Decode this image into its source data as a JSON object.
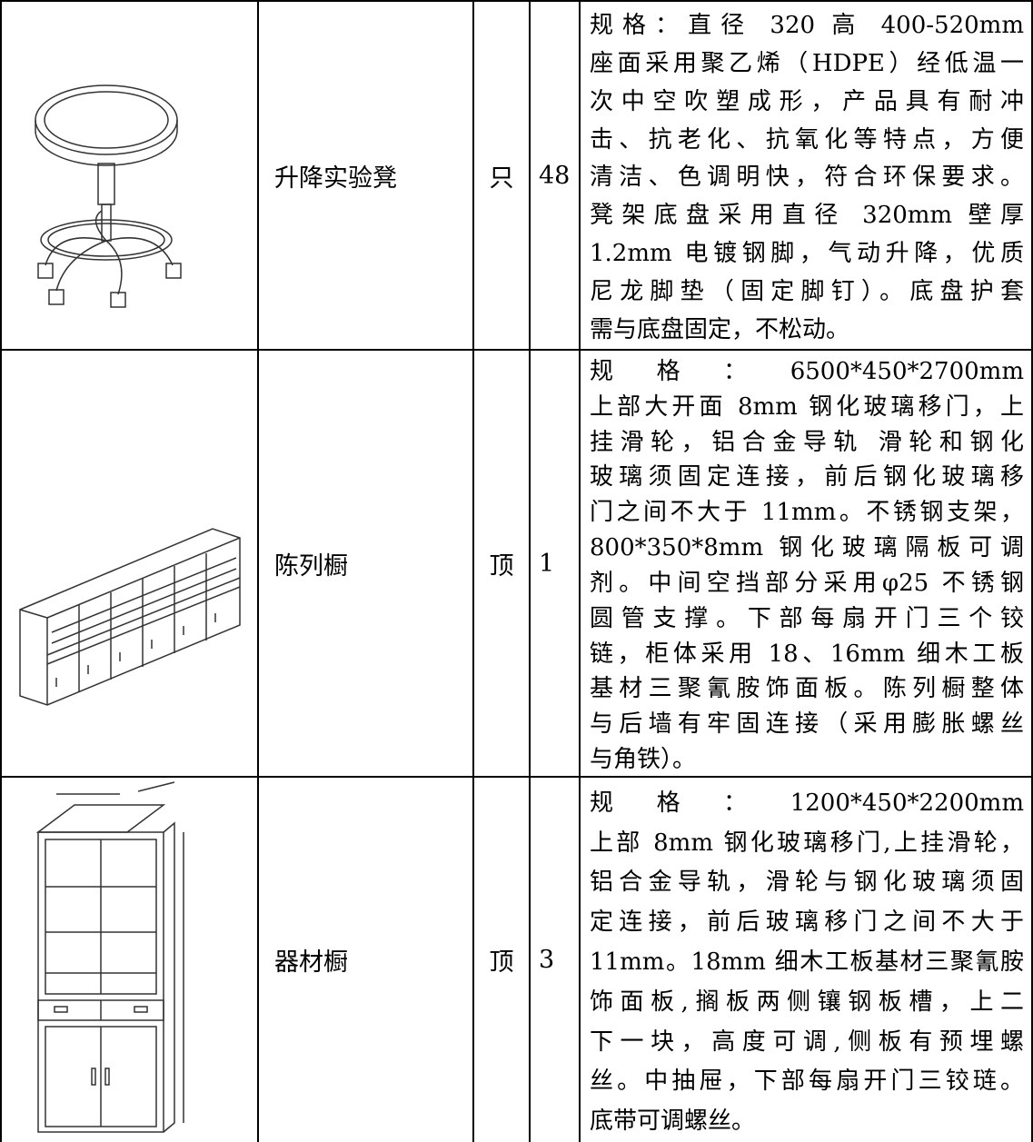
{
  "table": {
    "rows": [
      {
        "name": "升降实验凳",
        "unit": "只",
        "quantity": 48,
        "description": [
          "规格：直径 320 高 400-520mm",
          "座面采用聚乙烯（HDPE）经低温一",
          "次中空吹塑成形，产品具有耐冲",
          "击、抗老化、抗氧化等特点，方便",
          "清洁、色调明快，符合环保要求。",
          "凳架底盘采用直径 320mm 壁厚",
          "1.2mm 电镀钢脚，气动升降，优质",
          "尼龙脚垫（固定脚钉）。底盘护套",
          "需与底盘固定，不松动。"
        ]
      },
      {
        "name": "陈列橱",
        "unit": "顶",
        "quantity": 1,
        "description": [
          "规格：6500*450*2700mm",
          "上部大开面 8mm 钢化玻璃移门，上",
          "挂滑轮，铝合金导轨 滑轮和钢化",
          "玻璃须固定连接，前后钢化玻璃移",
          "门之间不大于 11mm。不锈钢支架，",
          "800*350*8mm 钢化玻璃隔板可调",
          "剂。中间空挡部分采用φ25 不锈钢",
          "圆管支撑。下部每扇开门三个铰",
          "链，柜体采用 18、16mm 细木工板",
          "基材三聚氰胺饰面板。陈列橱整体",
          "与后墙有牢固连接（采用膨胀螺丝",
          "与角铁）。"
        ]
      },
      {
        "name": "器材橱",
        "unit": "顶",
        "quantity": 3,
        "description": [
          "规格：1200*450*2200mm",
          "上部 8mm 钢化玻璃移门,上挂滑轮，",
          "铝合金导轨，滑轮与钢化玻璃须固",
          "定连接，前后玻璃移门之间不大于",
          "11mm。18mm 细木工板基材三聚氰胺",
          "饰面板,搁板两侧镶钢板槽，上二",
          "下一块，高度可调,侧板有预埋螺",
          "丝。中抽屉，下部每扇开门三铰琏。",
          "底带可调螺丝。"
        ]
      }
    ]
  }
}
